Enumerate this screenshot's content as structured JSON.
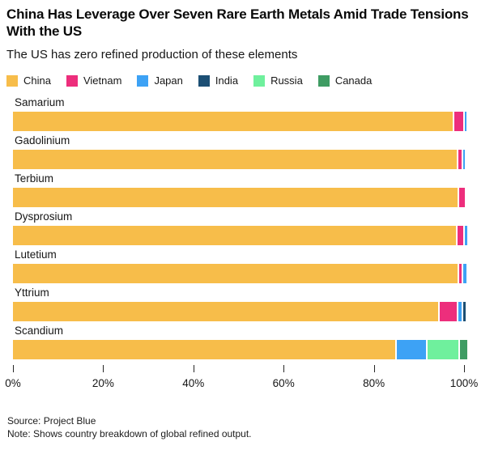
{
  "header": {
    "title": "China Has Leverage Over Seven Rare Earth Metals Amid Trade Tensions With the US",
    "subtitle": "The US has zero refined production of these elements"
  },
  "colors": {
    "china": "#f7bd4a",
    "vietnam": "#ed2e7c",
    "japan": "#3da2f5",
    "india": "#1c4f74",
    "russia": "#6ff09d",
    "canada": "#3f9c63",
    "tick": "#262626",
    "background": "#ffffff"
  },
  "chart_data": {
    "type": "bar",
    "stacked": true,
    "horizontal": true,
    "title": "China Has Leverage Over Seven Rare Earth Metals Amid Trade Tensions With the US",
    "subtitle": "The US has zero refined production of these elements",
    "categories": [
      "Samarium",
      "Gadolinium",
      "Terbium",
      "Dysprosium",
      "Lutetium",
      "Yttrium",
      "Scandium"
    ],
    "series": [
      {
        "name": "China",
        "color": "#f7bd4a",
        "values": [
          97.5,
          98.3,
          98.6,
          98.2,
          98.5,
          94.2,
          84.7
        ]
      },
      {
        "name": "Vietnam",
        "color": "#ed2e7c",
        "values": [
          1.9,
          0.8,
          1.2,
          1.3,
          0.6,
          3.9,
          0
        ]
      },
      {
        "name": "Japan",
        "color": "#3da2f5",
        "values": [
          0.4,
          0.3,
          0,
          0.5,
          0.8,
          0.7,
          6.5
        ]
      },
      {
        "name": "India",
        "color": "#1c4f74",
        "values": [
          0,
          0,
          0,
          0,
          0,
          0.5,
          0
        ]
      },
      {
        "name": "Russia",
        "color": "#6ff09d",
        "values": [
          0,
          0,
          0,
          0,
          0,
          0,
          6.9
        ]
      },
      {
        "name": "Canada",
        "color": "#3f9c63",
        "values": [
          0,
          0,
          0,
          0,
          0,
          0,
          1.5
        ]
      }
    ],
    "x_ticks": [
      {
        "label": "0%",
        "value": 0
      },
      {
        "label": "20%",
        "value": 20
      },
      {
        "label": "40%",
        "value": 40
      },
      {
        "label": "60%",
        "value": 60
      },
      {
        "label": "80%",
        "value": 80
      },
      {
        "label": "100%",
        "value": 100
      }
    ],
    "xlim": [
      0,
      100
    ],
    "legend_position": "top",
    "grid": false
  },
  "footer": {
    "source": "Source: Project Blue",
    "note": "Note: Shows country breakdown of global refined output."
  }
}
